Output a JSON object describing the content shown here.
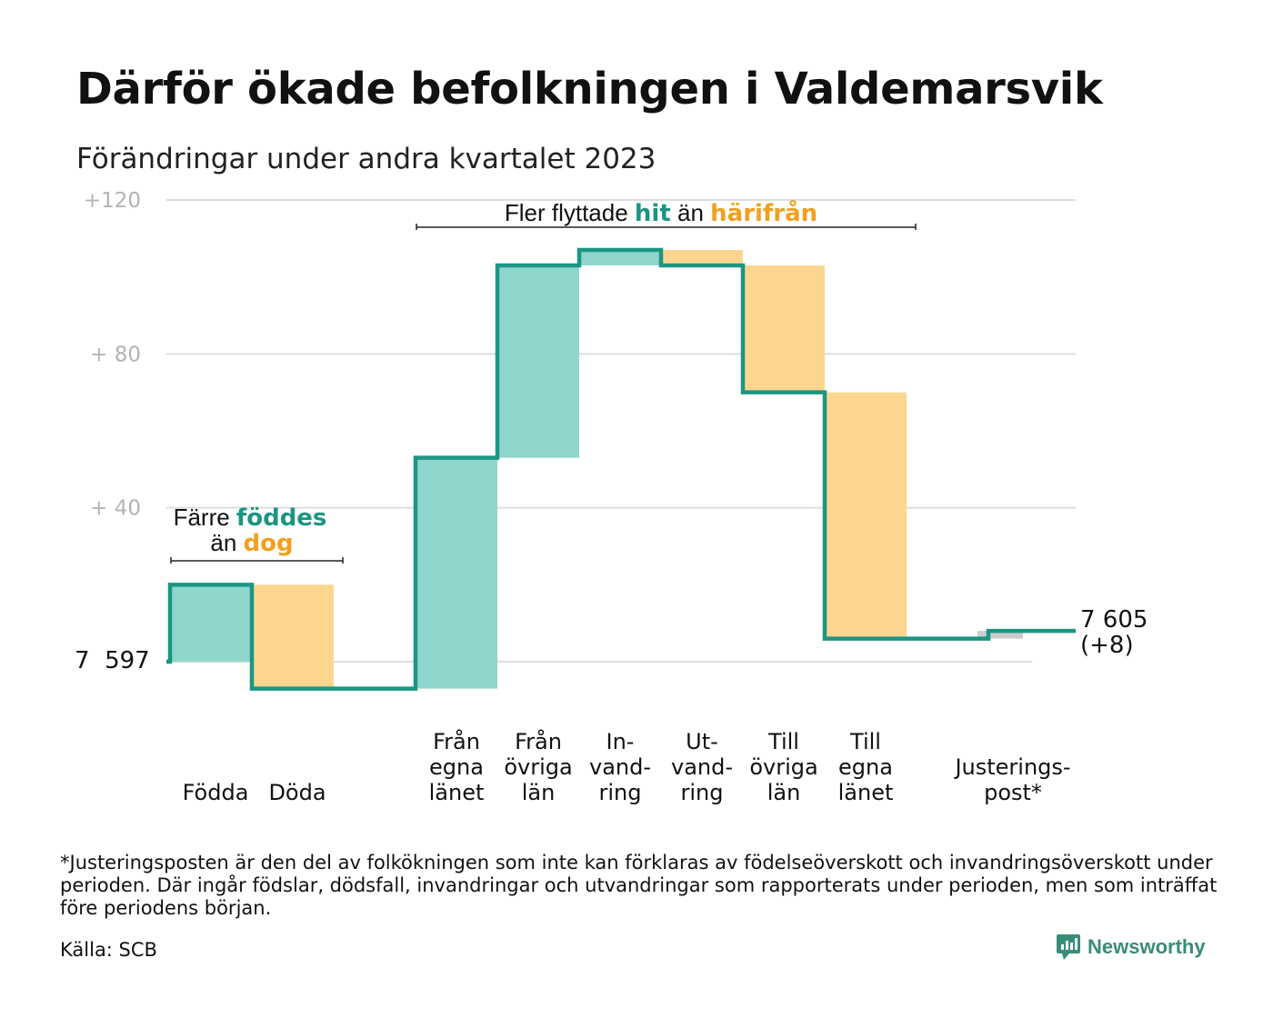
{
  "title": "Därför ökade befolkningen i Valdemarsvik",
  "subtitle": "Förändringar under andra kvartalet 2023",
  "chart_data": {
    "type": "waterfall",
    "start_label": "7  597",
    "end_label_value": "7 605",
    "end_label_change": "(+8)",
    "y_ticks": [
      {
        "value": 120,
        "label": "+120"
      },
      {
        "value": 80,
        "label": "+  80"
      },
      {
        "value": 40,
        "label": "+  40"
      }
    ],
    "ylim": [
      -10,
      122
    ],
    "grid": true,
    "steps": [
      {
        "key": "fodda",
        "label_lines": [
          "Födda"
        ],
        "from": 0,
        "to": 20,
        "kind": "in"
      },
      {
        "key": "doda",
        "label_lines": [
          "Döda"
        ],
        "from": 20,
        "to": -7,
        "kind": "out"
      },
      {
        "key": "gap",
        "label_lines": [],
        "from": -7,
        "to": -7,
        "kind": "none"
      },
      {
        "key": "fran-egna",
        "label_lines": [
          "Från",
          "egna",
          "länet"
        ],
        "from": -7,
        "to": 53,
        "kind": "in"
      },
      {
        "key": "fran-ovriga",
        "label_lines": [
          "Från",
          "övriga",
          "län"
        ],
        "from": 53,
        "to": 103,
        "kind": "in"
      },
      {
        "key": "invandring",
        "label_lines": [
          "In-",
          "vand-",
          "ring"
        ],
        "from": 103,
        "to": 107,
        "kind": "in"
      },
      {
        "key": "utvandring",
        "label_lines": [
          "Ut-",
          "vand-",
          "ring"
        ],
        "from": 107,
        "to": 103,
        "kind": "out"
      },
      {
        "key": "till-ovriga",
        "label_lines": [
          "Till",
          "övriga",
          "län"
        ],
        "from": 103,
        "to": 70,
        "kind": "out"
      },
      {
        "key": "till-egna",
        "label_lines": [
          "Till",
          "egna",
          "länet"
        ],
        "from": 70,
        "to": 6,
        "kind": "out"
      },
      {
        "key": "gap2",
        "label_lines": [],
        "from": 6,
        "to": 6,
        "kind": "none"
      },
      {
        "key": "justering",
        "label_lines": [
          "Justerings-",
          "post*"
        ],
        "from": 6,
        "to": 8,
        "kind": "adjust"
      }
    ],
    "annotations": {
      "births": {
        "plain1": "Färre",
        "bold1": "föddes",
        "plain2": "än",
        "bold2": "dog"
      },
      "migration": {
        "plain1": "Fler flyttade",
        "bold1": "hit",
        "plain2": "än",
        "bold2": "härifrån"
      }
    }
  },
  "colors": {
    "line": "#1b9584",
    "in_fill": "#8fd6cc",
    "out_fill": "#fcd68f",
    "adjust_fill": "#cccccc",
    "in_text": "#1b9584",
    "out_text": "#f0a020",
    "grid": "#dddddd"
  },
  "footnote": "*Justeringsposten är den del av folkökningen som inte kan förklaras av födelseöverskott och invandringsöverskott under perioden. Där ingår födslar, dödsfall, invandringar och utvandringar som rapporterats under perioden, men som inträffat före periodens början.",
  "source": "Källa: SCB",
  "brand": {
    "name": "Newsworthy",
    "icon": "newsworthy-logo-icon"
  }
}
